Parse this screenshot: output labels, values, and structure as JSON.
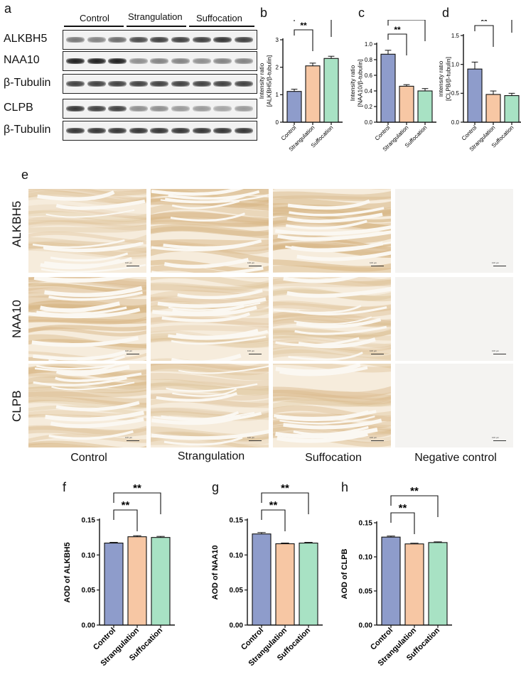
{
  "panels": {
    "a": "a",
    "b": "b",
    "c": "c",
    "d": "d",
    "e": "e",
    "f": "f",
    "g": "g",
    "h": "h"
  },
  "western_blot": {
    "groups": [
      "Control",
      "Strangulation",
      "Suffocation"
    ],
    "rows": [
      {
        "label": "ALKBH5",
        "intensities": [
          0.55,
          0.5,
          0.6,
          0.75,
          0.8,
          0.8,
          0.8,
          0.85,
          0.8
        ]
      },
      {
        "label": "NAA10",
        "intensities": [
          0.95,
          0.95,
          0.95,
          0.45,
          0.5,
          0.5,
          0.45,
          0.5,
          0.5
        ]
      },
      {
        "label": "β-Tubulin",
        "intensities": [
          0.8,
          0.8,
          0.8,
          0.8,
          0.8,
          0.8,
          0.8,
          0.8,
          0.8
        ]
      },
      {
        "label": "CLPB",
        "intensities": [
          0.85,
          0.8,
          0.8,
          0.45,
          0.45,
          0.4,
          0.4,
          0.35,
          0.4
        ]
      },
      {
        "label": "β-Tubulin",
        "intensities": [
          0.85,
          0.85,
          0.85,
          0.85,
          0.85,
          0.85,
          0.85,
          0.85,
          0.85
        ]
      }
    ]
  },
  "ihc": {
    "row_labels": [
      "ALKBH5",
      "NAA10",
      "CLPB"
    ],
    "col_labels": [
      "Control",
      "Strangulation",
      "Suffocation",
      "Negative control"
    ],
    "scale_text": "100 μm",
    "stain_levels": [
      [
        0.35,
        0.7,
        0.75,
        0.05
      ],
      [
        0.7,
        0.35,
        0.4,
        0.05
      ],
      [
        0.5,
        0.35,
        0.45,
        0.05
      ]
    ]
  },
  "colors": {
    "control": "#8e9ccb",
    "strangulation": "#f7c7a4",
    "suffocation": "#a8e2c4",
    "tissue_base": "#f6ecdc",
    "tissue_stain": "#d9b98a"
  },
  "chart_data": [
    {
      "id": "b",
      "type": "bar",
      "categories": [
        "Control",
        "Strangulation",
        "Suffocation"
      ],
      "values": [
        1.12,
        2.05,
        2.32
      ],
      "errors": [
        0.08,
        0.1,
        0.08
      ],
      "ylabel": [
        "Intensity ratio",
        "[ALKBH5/β-tubulin]"
      ],
      "ylim": [
        0,
        3
      ],
      "yticks": [
        "0",
        "1",
        "2",
        "3"
      ],
      "significance": [
        {
          "from": 0,
          "to": 1,
          "label": "**"
        },
        {
          "from": 0,
          "to": 2,
          "label": "***"
        }
      ]
    },
    {
      "id": "c",
      "type": "bar",
      "categories": [
        "Control",
        "Strangulation",
        "Suffocation"
      ],
      "values": [
        0.87,
        0.46,
        0.4
      ],
      "errors": [
        0.05,
        0.02,
        0.03
      ],
      "ylabel": [
        "Intensity ratio",
        "[NAA10/β-tubulin]"
      ],
      "ylim": [
        0,
        1.0
      ],
      "yticks": [
        "0.0",
        "0.2",
        "0.4",
        "0.6",
        "0.8",
        "1.0"
      ],
      "significance": [
        {
          "from": 0,
          "to": 1,
          "label": "**"
        },
        {
          "from": 0,
          "to": 2,
          "label": "***"
        }
      ]
    },
    {
      "id": "d",
      "type": "bar",
      "categories": [
        "Control",
        "Strangulation",
        "Suffocation"
      ],
      "values": [
        0.92,
        0.48,
        0.46
      ],
      "errors": [
        0.12,
        0.06,
        0.04
      ],
      "ylabel": [
        "Intensity ratio",
        "[CLPB/β-tubulin]"
      ],
      "ylim": [
        0,
        1.5
      ],
      "yticks": [
        "0.0",
        "0.5",
        "1.0",
        "1.5"
      ],
      "significance": [
        {
          "from": 0,
          "to": 1,
          "label": "**"
        },
        {
          "from": 0,
          "to": 2,
          "label": "**"
        }
      ]
    },
    {
      "id": "f",
      "type": "bar",
      "categories": [
        "Control",
        "Strangulation",
        "Suffocation"
      ],
      "values": [
        0.117,
        0.126,
        0.125
      ],
      "errors": [
        0.001,
        0.0015,
        0.0015
      ],
      "ylabel": [
        "AOD of ALKBH5"
      ],
      "ylim": [
        0,
        0.15
      ],
      "yticks": [
        "0.00",
        "0.05",
        "0.10",
        "0.15"
      ],
      "significance": [
        {
          "from": 0,
          "to": 1,
          "label": "**"
        },
        {
          "from": 0,
          "to": 2,
          "label": "**"
        }
      ]
    },
    {
      "id": "g",
      "type": "bar",
      "categories": [
        "Control",
        "Strangulation",
        "Suffocation"
      ],
      "values": [
        0.13,
        0.116,
        0.117
      ],
      "errors": [
        0.002,
        0.001,
        0.001
      ],
      "ylabel": [
        "AOD of NAA10"
      ],
      "ylim": [
        0,
        0.15
      ],
      "yticks": [
        "0.00",
        "0.05",
        "0.10",
        "0.15"
      ],
      "significance": [
        {
          "from": 0,
          "to": 1,
          "label": "**"
        },
        {
          "from": 0,
          "to": 2,
          "label": "**"
        }
      ]
    },
    {
      "id": "h",
      "type": "bar",
      "categories": [
        "Control",
        "Strangulation",
        "Suffocation"
      ],
      "values": [
        0.129,
        0.119,
        0.121
      ],
      "errors": [
        0.0015,
        0.001,
        0.001
      ],
      "ylabel": [
        "AOD of CLPB"
      ],
      "ylim": [
        0,
        0.15
      ],
      "yticks": [
        "0.00",
        "0.05",
        "0.10",
        "0.15"
      ],
      "significance": [
        {
          "from": 0,
          "to": 1,
          "label": "**"
        },
        {
          "from": 0,
          "to": 2,
          "label": "**"
        }
      ]
    }
  ]
}
